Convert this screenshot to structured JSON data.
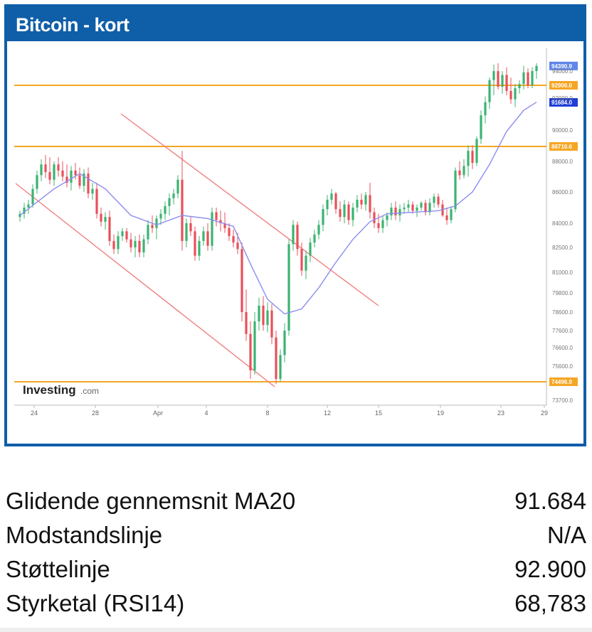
{
  "header": {
    "title": "Bitcoin - kort"
  },
  "watermark": {
    "brand": "Investing",
    "suffix": ".com"
  },
  "colors": {
    "frame": "#0f5ea8",
    "up": "#3cb371",
    "down": "#e8505b",
    "ma": "#8b8cf0",
    "level": "#f5a623",
    "channel": "#f08080",
    "marker_blue": "#1f3fd6",
    "marker_light": "#5f86e8"
  },
  "chart_data": {
    "type": "candlestick",
    "title": "",
    "xlabel": "",
    "ylabel": "",
    "ylim": [
      73700,
      95300
    ],
    "x_tick_labels": [
      "24",
      "28",
      "Apr",
      "4",
      "8",
      "12",
      "15",
      "19",
      "23",
      "29"
    ],
    "y_tick_labels": [
      "94000.0",
      "92000.0",
      "90000.0",
      "88000.0",
      "86000.0",
      "84000.0",
      "82500.0",
      "81000.0",
      "79800.0",
      "78600.0",
      "77600.0",
      "76600.0",
      "75600.0",
      "73700.0"
    ],
    "price_markers": [
      {
        "label": "94390.9",
        "value": 94390.9,
        "style": "current"
      },
      {
        "label": "92900.0",
        "value": 92900,
        "style": "support"
      },
      {
        "label": "91684.0",
        "value": 91684,
        "style": "ma20"
      },
      {
        "label": "88710.6",
        "value": 88710.6,
        "style": "level"
      },
      {
        "label": "74496.9",
        "value": 74496.9,
        "style": "level"
      }
    ],
    "horizontal_levels": [
      92900,
      88710.6,
      74496.9
    ],
    "series": [
      {
        "name": "BTC candles",
        "points": [
          [
            84400,
            84800,
            84100,
            84600
          ],
          [
            84600,
            85300,
            84300,
            85000
          ],
          [
            85000,
            85500,
            84600,
            85200
          ],
          [
            85200,
            86500,
            85000,
            86200
          ],
          [
            86200,
            87400,
            85900,
            87100
          ],
          [
            87100,
            88100,
            86700,
            87800
          ],
          [
            87800,
            88300,
            86900,
            87300
          ],
          [
            87300,
            88200,
            86500,
            86800
          ],
          [
            86800,
            88000,
            86400,
            87800
          ],
          [
            87800,
            88200,
            87000,
            87400
          ],
          [
            87400,
            88000,
            86700,
            87000
          ],
          [
            87000,
            87800,
            86300,
            86600
          ],
          [
            86600,
            87700,
            86100,
            87400
          ],
          [
            87400,
            87900,
            86800,
            87100
          ],
          [
            87100,
            87600,
            86200,
            86400
          ],
          [
            86400,
            87500,
            86000,
            87200
          ],
          [
            87200,
            87600,
            85600,
            85900
          ],
          [
            85900,
            86600,
            85500,
            86200
          ],
          [
            86200,
            86600,
            84300,
            84600
          ],
          [
            84600,
            85000,
            83800,
            84100
          ],
          [
            84100,
            84700,
            83600,
            84400
          ],
          [
            84400,
            84800,
            82600,
            82900
          ],
          [
            82900,
            83300,
            82100,
            82400
          ],
          [
            82400,
            83500,
            82100,
            83200
          ],
          [
            83200,
            83700,
            82900,
            83500
          ],
          [
            83500,
            83700,
            82800,
            83000
          ],
          [
            83000,
            83400,
            82200,
            82500
          ],
          [
            82500,
            83200,
            81900,
            82900
          ],
          [
            82900,
            83300,
            81900,
            82200
          ],
          [
            82200,
            83300,
            81900,
            83000
          ],
          [
            83000,
            84200,
            82700,
            83900
          ],
          [
            83900,
            84500,
            83400,
            83700
          ],
          [
            83700,
            84500,
            83000,
            84300
          ],
          [
            84300,
            84900,
            83900,
            84600
          ],
          [
            84600,
            85400,
            84200,
            85100
          ],
          [
            85100,
            85900,
            84500,
            85600
          ],
          [
            85600,
            86200,
            85200,
            85900
          ],
          [
            85900,
            87100,
            85600,
            86800
          ],
          [
            86800,
            88500,
            82300,
            82900
          ],
          [
            82900,
            84300,
            82500,
            84000
          ],
          [
            84000,
            84400,
            83200,
            83500
          ],
          [
            83500,
            83800,
            81700,
            82000
          ],
          [
            82000,
            83200,
            81700,
            82900
          ],
          [
            82900,
            83800,
            82600,
            83500
          ],
          [
            83500,
            84000,
            82300,
            82600
          ],
          [
            82600,
            85000,
            82300,
            84700
          ],
          [
            84700,
            85000,
            83800,
            84200
          ],
          [
            84200,
            84800,
            83500,
            84000
          ],
          [
            84000,
            84700,
            83400,
            83700
          ],
          [
            83700,
            84000,
            82900,
            83200
          ],
          [
            83200,
            83600,
            82500,
            82800
          ],
          [
            82800,
            83400,
            82100,
            82400
          ],
          [
            82400,
            82800,
            78100,
            78600
          ],
          [
            78600,
            80000,
            77000,
            77400
          ],
          [
            77400,
            78100,
            74700,
            75300
          ],
          [
            75300,
            78600,
            75000,
            78100
          ],
          [
            78100,
            79500,
            77600,
            79000
          ],
          [
            79000,
            79600,
            77600,
            77900
          ],
          [
            77900,
            79200,
            77500,
            78700
          ],
          [
            78700,
            79100,
            76800,
            77200
          ],
          [
            77200,
            77600,
            74400,
            74700
          ],
          [
            74700,
            76500,
            74500,
            76200
          ],
          [
            76200,
            78000,
            75800,
            77600
          ],
          [
            77600,
            83000,
            77300,
            82700
          ],
          [
            82700,
            84200,
            82300,
            83900
          ],
          [
            83900,
            84100,
            82000,
            82400
          ],
          [
            82400,
            82800,
            80800,
            81100
          ],
          [
            81100,
            82300,
            80600,
            82000
          ],
          [
            82000,
            83100,
            81600,
            82800
          ],
          [
            82800,
            83600,
            82500,
            83300
          ],
          [
            83300,
            84200,
            83000,
            83900
          ],
          [
            83900,
            85200,
            83500,
            84900
          ],
          [
            84900,
            85800,
            84500,
            85500
          ],
          [
            85500,
            86200,
            85200,
            85900
          ],
          [
            85900,
            86000,
            84600,
            84900
          ],
          [
            84900,
            85400,
            84100,
            84400
          ],
          [
            84400,
            85500,
            84000,
            85200
          ],
          [
            85200,
            85400,
            83900,
            84200
          ],
          [
            84200,
            85300,
            83800,
            85000
          ],
          [
            85000,
            85800,
            84700,
            85500
          ],
          [
            85500,
            85900,
            84900,
            85200
          ],
          [
            85200,
            86000,
            84800,
            85800
          ],
          [
            85800,
            86600,
            84300,
            84700
          ],
          [
            84700,
            85000,
            83700,
            84000
          ],
          [
            84000,
            84600,
            83400,
            83700
          ],
          [
            83700,
            84500,
            83400,
            84200
          ],
          [
            84200,
            84700,
            83800,
            84500
          ],
          [
            84500,
            85300,
            84200,
            85000
          ],
          [
            85000,
            85400,
            84200,
            84500
          ],
          [
            84500,
            85200,
            84100,
            84900
          ],
          [
            84900,
            85300,
            84600,
            85000
          ],
          [
            85000,
            85500,
            84700,
            85200
          ],
          [
            85200,
            85400,
            84600,
            84800
          ],
          [
            84800,
            85200,
            84400,
            85000
          ],
          [
            85000,
            85400,
            84800,
            85300
          ],
          [
            85300,
            85500,
            84500,
            84700
          ],
          [
            84700,
            85600,
            84500,
            85300
          ],
          [
            85300,
            85900,
            85000,
            85700
          ],
          [
            85700,
            85900,
            85000,
            85200
          ],
          [
            85200,
            85500,
            84400,
            84500
          ],
          [
            84500,
            85000,
            83900,
            84200
          ],
          [
            84200,
            85100,
            84000,
            84900
          ],
          [
            84900,
            87600,
            84700,
            87400
          ],
          [
            87400,
            88000,
            86800,
            87100
          ],
          [
            87100,
            88100,
            86900,
            87700
          ],
          [
            87700,
            88800,
            87000,
            88500
          ],
          [
            88500,
            88800,
            87500,
            87900
          ],
          [
            87900,
            89500,
            87700,
            89300
          ],
          [
            89300,
            91200,
            88900,
            90900
          ],
          [
            90900,
            92100,
            90400,
            91700
          ],
          [
            91700,
            93500,
            91300,
            93300
          ],
          [
            93300,
            94500,
            92200,
            94000
          ],
          [
            94000,
            94600,
            92600,
            92800
          ],
          [
            92800,
            94000,
            92300,
            93700
          ],
          [
            93700,
            94300,
            92200,
            92500
          ],
          [
            92500,
            93500,
            91600,
            91900
          ],
          [
            91900,
            93000,
            91400,
            92700
          ],
          [
            92700,
            93300,
            92300,
            93000
          ],
          [
            93000,
            94400,
            92600,
            93900
          ],
          [
            93900,
            94200,
            92700,
            92900
          ],
          [
            92900,
            94300,
            92700,
            94000
          ],
          [
            94000,
            94600,
            93400,
            94391
          ]
        ]
      },
      {
        "name": "MA20",
        "points": [
          [
            0,
            84500
          ],
          [
            8,
            86200
          ],
          [
            14,
            87200
          ],
          [
            20,
            86200
          ],
          [
            26,
            84500
          ],
          [
            32,
            83900
          ],
          [
            38,
            84500
          ],
          [
            44,
            84300
          ],
          [
            50,
            83800
          ],
          [
            54,
            81500
          ],
          [
            58,
            79400
          ],
          [
            62,
            78500
          ],
          [
            66,
            78800
          ],
          [
            70,
            80100
          ],
          [
            74,
            81600
          ],
          [
            78,
            83000
          ],
          [
            82,
            84100
          ],
          [
            86,
            84600
          ],
          [
            92,
            84700
          ],
          [
            98,
            84800
          ],
          [
            102,
            85100
          ],
          [
            106,
            86000
          ],
          [
            110,
            87800
          ],
          [
            114,
            89900
          ],
          [
            118,
            91200
          ],
          [
            121,
            91700
          ]
        ]
      }
    ]
  },
  "metrics": [
    {
      "label": "Glidende gennemsnit MA20",
      "value": "91.684"
    },
    {
      "label": "Modstandslinje",
      "value": "N/A"
    },
    {
      "label": "Støttelinje",
      "value": "92.900"
    },
    {
      "label": "Styrketal (RSI14)",
      "value": "68,783"
    }
  ]
}
